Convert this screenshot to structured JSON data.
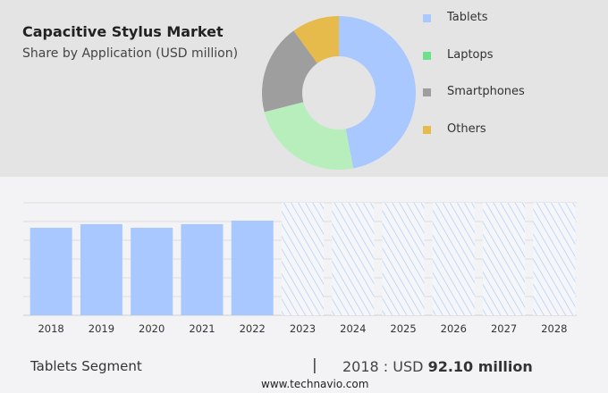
{
  "chart_data": [
    {
      "type": "pie",
      "style": "donut",
      "title": "Capacitive Stylus Market",
      "subtitle": "Share by Application (USD million)",
      "legend_position": "right",
      "slices": [
        {
          "name": "Tablets",
          "value": 47,
          "color": "#a8c8ff"
        },
        {
          "name": "Laptops",
          "value": 24,
          "color": "#b8eebc"
        },
        {
          "name": "Smartphones",
          "value": 19,
          "color": "#9e9e9e"
        },
        {
          "name": "Others",
          "value": 10,
          "color": "#e6bb4c"
        }
      ],
      "legend_colors": [
        "#a8c8ff",
        "#6ee08a",
        "#9e9e9e",
        "#e6bb4c"
      ]
    },
    {
      "type": "bar",
      "categories": [
        "2018",
        "2019",
        "2020",
        "2021",
        "2022",
        "2023",
        "2024",
        "2025",
        "2026",
        "2027",
        "2028"
      ],
      "values": [
        92.1,
        95.9,
        92.1,
        95.9,
        99.6,
        null,
        null,
        null,
        null,
        null,
        null
      ],
      "forecast": [
        "2023",
        "2024",
        "2025",
        "2026",
        "2027",
        "2028"
      ],
      "forecast_style": "hatched",
      "ylim": [
        0,
        118.4
      ],
      "grid": true,
      "color": "#a8c8ff"
    }
  ],
  "footer": {
    "segment": "Tablets Segment",
    "separator": "|",
    "value_prefix": "2018 : USD ",
    "value_bold": "92.10 million",
    "source": "www.technavio.com"
  }
}
